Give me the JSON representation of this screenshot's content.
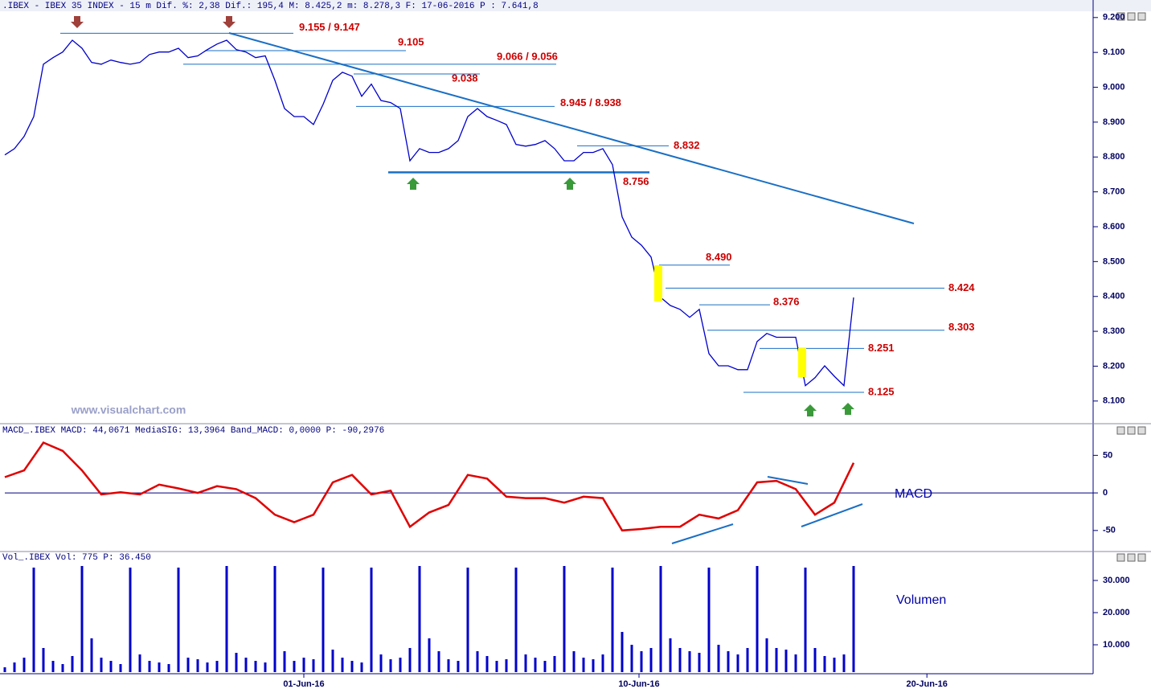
{
  "chart_data": [
    {
      "type": "line",
      "title": ".IBEX - IBEX 35 INDEX -  15 m Dif. %: 2,38 Dif.: 195,4 M: 8.425,2 m: 8.278,3 F: 17-06-2016 P : 7.641,8",
      "watermark": "www.visualchart.com",
      "color": "#0000cc",
      "xlim": [
        -0.5,
        113
      ],
      "ylim": [
        8035,
        9218
      ],
      "yticks": [
        {
          "value": 8100,
          "label": "8.100"
        },
        {
          "value": 8200,
          "label": "8.200"
        },
        {
          "value": 8300,
          "label": "8.300"
        },
        {
          "value": 8400,
          "label": "8.400"
        },
        {
          "value": 8500,
          "label": "8.500"
        },
        {
          "value": 8600,
          "label": "8.600"
        },
        {
          "value": 8700,
          "label": "8.700"
        },
        {
          "value": 8800,
          "label": "8.800"
        },
        {
          "value": 8900,
          "label": "8.900"
        },
        {
          "value": 9000,
          "label": "9.000"
        },
        {
          "value": 9100,
          "label": "9.100"
        },
        {
          "value": 9200,
          "label": "9.200"
        }
      ],
      "values": [
        8806,
        8824,
        8859,
        8916,
        9066,
        9085,
        9101,
        9135,
        9112,
        9071,
        9066,
        9078,
        9071,
        9066,
        9071,
        9094,
        9101,
        9101,
        9112,
        9085,
        9090,
        9108,
        9124,
        9135,
        9108,
        9101,
        9085,
        9090,
        9020,
        8939,
        8916,
        8916,
        8893,
        8951,
        9020,
        9043,
        9032,
        8974,
        9009,
        8962,
        8956,
        8939,
        8789,
        8824,
        8813,
        8813,
        8824,
        8847,
        8916,
        8939,
        8916,
        8905,
        8893,
        8836,
        8831,
        8836,
        8847,
        8824,
        8789,
        8789,
        8813,
        8813,
        8824,
        8778,
        8628,
        8570,
        8547,
        8513,
        8397,
        8374,
        8363,
        8340,
        8363,
        8236,
        8201,
        8201,
        8190,
        8190,
        8271,
        8294,
        8283,
        8283,
        8283,
        8144,
        8167,
        8201,
        8171,
        8144,
        8397
      ],
      "annotations": [
        {
          "text": "9.155 / 9.147",
          "values": [
            9155,
            9147
          ]
        },
        {
          "text": "9.105",
          "values": [
            9105
          ]
        },
        {
          "text": "9.066 / 9.056",
          "values": [
            9066,
            9056
          ]
        },
        {
          "text": "9.038",
          "values": [
            9038
          ]
        },
        {
          "text": "8.945 / 8.938",
          "values": [
            8945,
            8938
          ]
        },
        {
          "text": "8.832",
          "values": [
            8832
          ]
        },
        {
          "text": "8.756",
          "values": [
            8756
          ]
        },
        {
          "text": "8.490",
          "values": [
            8490
          ]
        },
        {
          "text": "8.424",
          "values": [
            8424
          ]
        },
        {
          "text": "8.376",
          "values": [
            8376
          ]
        },
        {
          "text": "8.303",
          "values": [
            8303
          ]
        },
        {
          "text": "8.251",
          "values": [
            8251
          ]
        },
        {
          "text": "8.125",
          "values": [
            8125
          ]
        }
      ]
    },
    {
      "type": "line",
      "title": "MACD_.IBEX MACD: 44,0671 MediaSIG: 13,3964 Band_MACD: 0,0000 P: -90,2976",
      "label": "MACD",
      "color": "#e00000",
      "xlim": [
        -0.25,
        56.5
      ],
      "ylim": [
        -78,
        75
      ],
      "yticks": [
        -50,
        0,
        50
      ],
      "values": [
        21,
        30,
        67,
        56,
        30,
        -2,
        1,
        -2,
        11,
        6,
        0,
        9,
        5,
        -7,
        -29,
        -39,
        -29,
        14,
        24,
        -2,
        3,
        -45,
        -26,
        -16,
        24,
        19,
        -5,
        -7,
        -7,
        -13,
        -5,
        -7,
        -50,
        -48,
        -45,
        -45,
        -29,
        -34,
        -23,
        14,
        16,
        5,
        -29,
        -13,
        40
      ]
    },
    {
      "type": "bar",
      "title": "Vol_.IBEX Vol: 775 P: 36.450",
      "label": "Volumen",
      "color": "#0000cc",
      "xlim": [
        -0.5,
        113
      ],
      "ylim": [
        1500,
        35500
      ],
      "yticks": [
        {
          "value": 10000,
          "label": "10.000"
        },
        {
          "value": 20000,
          "label": "20.000"
        },
        {
          "value": 30000,
          "label": "30.000"
        }
      ],
      "xticks": [
        {
          "value": 31,
          "label": "01-Jun-16"
        },
        {
          "value": 65.75,
          "label": "10-Jun-16"
        },
        {
          "value": 95.6,
          "label": "20-Jun-16"
        }
      ],
      "values": [
        3000,
        4500,
        6000,
        34000,
        9000,
        5000,
        4000,
        6500,
        34500,
        12000,
        6000,
        5000,
        4000,
        34000,
        7000,
        5000,
        4500,
        4000,
        34000,
        6000,
        5500,
        4500,
        5000,
        34500,
        7500,
        6000,
        5000,
        4500,
        34500,
        8000,
        5000,
        6000,
        5500,
        34000,
        8500,
        6000,
        5000,
        4500,
        34000,
        7000,
        5500,
        6000,
        9000,
        34500,
        12000,
        8000,
        5500,
        5000,
        34000,
        8000,
        6500,
        5000,
        5500,
        34000,
        7000,
        6000,
        5000,
        6500,
        34500,
        8000,
        6000,
        5500,
        7000,
        34000,
        14000,
        10000,
        8000,
        9000,
        34500,
        12000,
        9000,
        8000,
        7500,
        34000,
        10000,
        8000,
        7000,
        9000,
        34500,
        12000,
        9000,
        8500,
        7000,
        34000,
        9000,
        6500,
        6000,
        7000,
        34500
      ]
    }
  ]
}
